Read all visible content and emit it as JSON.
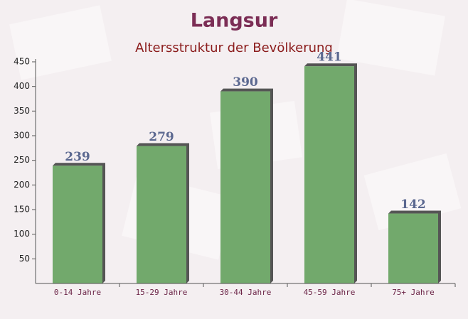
{
  "chart_data": {
    "type": "bar",
    "title": "Langsur",
    "subtitle": "Altersstruktur der Bevölkerung",
    "categories": [
      "0-14 Jahre",
      "15-29 Jahre",
      "30-44 Jahre",
      "45-59 Jahre",
      "75+ Jahre"
    ],
    "values": [
      239,
      279,
      390,
      441,
      142
    ],
    "color": "#6aa464",
    "ylim": [
      0,
      450
    ],
    "yticks": [
      50,
      100,
      150,
      200,
      250,
      300,
      350,
      400,
      450
    ]
  }
}
